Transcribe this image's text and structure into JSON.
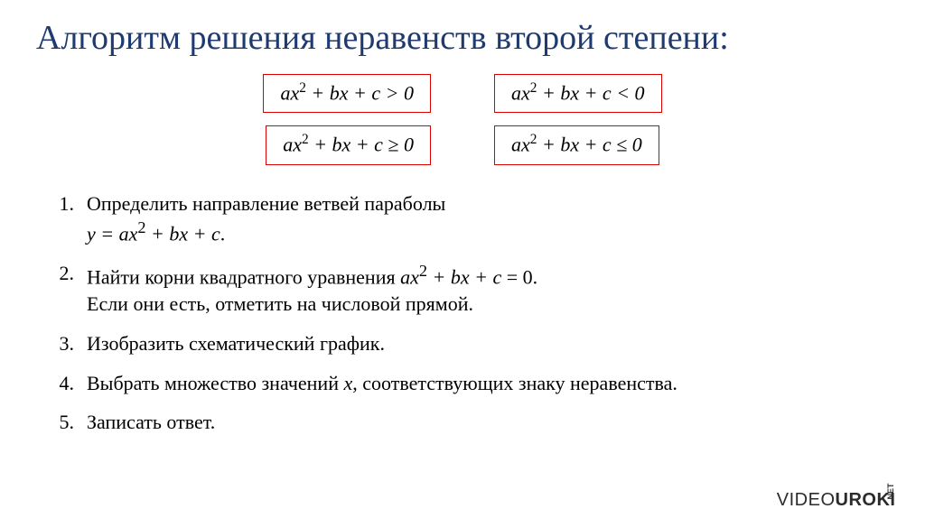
{
  "title": "Алгоритм решения неравенств второй степени:",
  "formulas": {
    "row1": {
      "left": "ax² + bx + c > 0",
      "right": "ax² + bx + c < 0"
    },
    "row2": {
      "left": "ax² + bx + c ≥ 0",
      "right": "ax² + bx + c ≤ 0"
    }
  },
  "steps": [
    {
      "num": "1.",
      "lines": [
        "Определить направление ветвей параболы",
        "y = ax² + bx + c."
      ]
    },
    {
      "num": "2.",
      "lines": [
        "Найти корни квадратного уравнения ax² + bx + c = 0.",
        "Если они есть, отметить на числовой прямой."
      ]
    },
    {
      "num": "3.",
      "lines": [
        "Изобразить схематический график."
      ]
    },
    {
      "num": "4.",
      "lines": [
        "Выбрать множество значений x, соответствующих знаку неравенства."
      ]
    },
    {
      "num": "5.",
      "lines": [
        "Записать ответ."
      ]
    }
  ],
  "watermark": {
    "part1": "VIDEO",
    "part2": "UROKI",
    "net": ".NET"
  },
  "colors": {
    "title": "#1f3a6e",
    "box_border": "#d90000",
    "text": "#000000",
    "background": "#ffffff"
  },
  "typography": {
    "title_fontsize": 38,
    "formula_fontsize": 22,
    "step_fontsize": 22,
    "watermark_fontsize": 20
  }
}
